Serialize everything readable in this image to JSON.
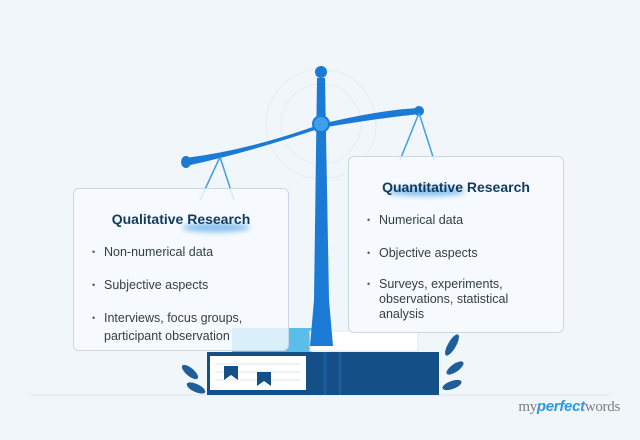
{
  "left_card": {
    "title": "Qualitative Research",
    "items": [
      "Non-numerical data",
      "Subjective aspects",
      "Interviews, focus groups, participant observation"
    ]
  },
  "right_card": {
    "title": "Quantitative Research",
    "items": [
      "Numerical data",
      "Objective aspects",
      "Surveys, experiments, observations, statistical analysis"
    ]
  },
  "logo": {
    "part1": "my",
    "part2": "perfect",
    "part3": "words"
  },
  "colors": {
    "background": "#f1f6fb",
    "scale_blue": "#1b7ad6",
    "book_dark": "#144f87",
    "title": "#123a5e"
  }
}
